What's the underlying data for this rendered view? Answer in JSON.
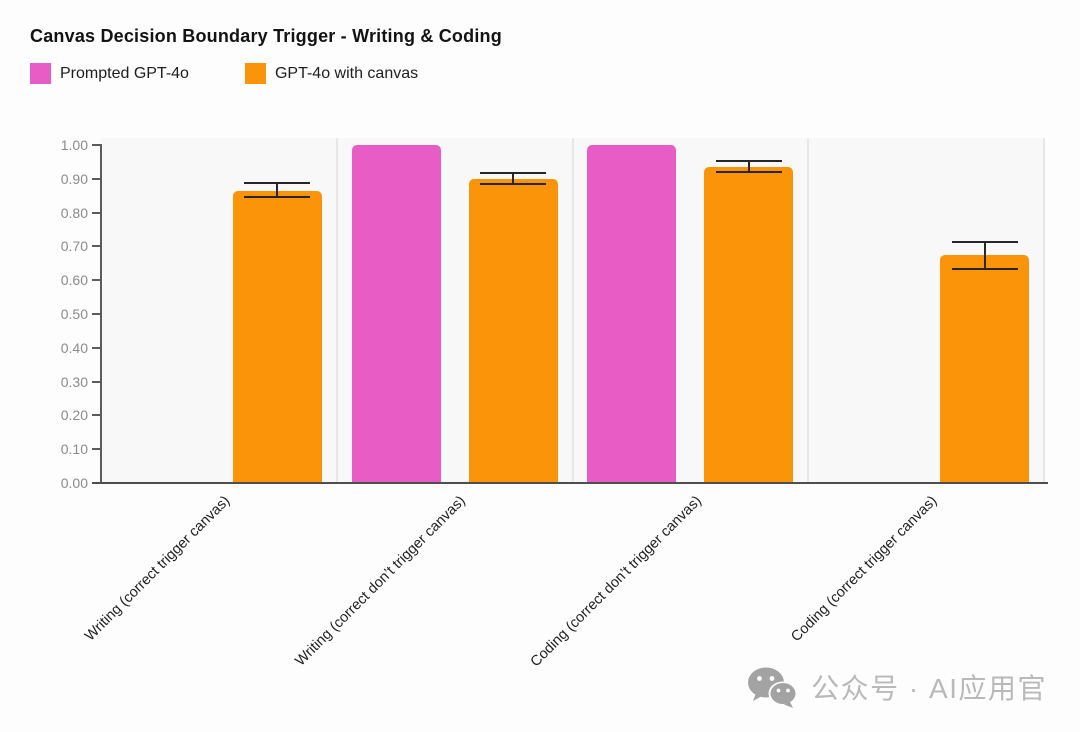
{
  "header": {
    "title": "Canvas Decision Boundary Trigger - Writing & Coding"
  },
  "chart_data": {
    "type": "bar",
    "title": "Canvas Decision Boundary Trigger - Writing & Coding",
    "categories": [
      "Writing (correct trigger canvas)",
      "Writing (correct don’t trigger canvas)",
      "Coding (correct don’t trigger canvas)",
      "Coding (correct trigger canvas)"
    ],
    "series": [
      {
        "name": "Prompted GPT-4o",
        "color": "#E85CC6",
        "values": [
          null,
          1.0,
          1.0,
          null
        ],
        "error_low": [
          null,
          null,
          null,
          null
        ],
        "error_high": [
          null,
          null,
          null,
          null
        ]
      },
      {
        "name": "GPT-4o with canvas",
        "color": "#FB9408",
        "values": [
          0.865,
          0.9,
          0.935,
          0.675
        ],
        "error_low": [
          0.845,
          0.885,
          0.92,
          0.633
        ],
        "error_high": [
          0.888,
          0.916,
          0.953,
          0.713
        ]
      }
    ],
    "xlabel": "",
    "ylabel": "",
    "ylim": [
      0.0,
      1.0
    ],
    "yticks": [
      "0.00",
      "0.10",
      "0.20",
      "0.30",
      "0.40",
      "0.50",
      "0.60",
      "0.70",
      "0.80",
      "0.90",
      "1.00"
    ],
    "grid": false,
    "legend_position": "top-left",
    "error_bar_color": "#262626"
  },
  "watermark": {
    "icon": "wechat-icon",
    "text": "公众号 · AI应用官",
    "color": "#b9b9b9"
  }
}
